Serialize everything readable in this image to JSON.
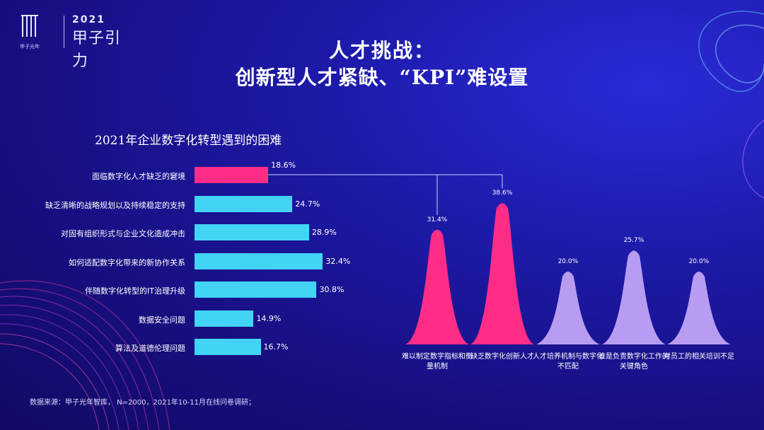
{
  "logo": {
    "brand": "甲子光年",
    "year": "2021",
    "event": "甲子引力"
  },
  "title": {
    "line1": "人才挑战：",
    "line2": "创新型人才紧缺、“KPI”难设置"
  },
  "source": "数据来源：甲子光年智库， N=2000，2021年10-11月在线问卷调研；",
  "colors": {
    "highlight": "#ff2d87",
    "bar": "#43d3f5",
    "muted": "#b79cf2"
  },
  "chart_data": [
    {
      "type": "bar",
      "orientation": "horizontal",
      "title": "2021年企业数字化转型遇到的困难",
      "categories": [
        "面临数字化人才缺乏的窘境",
        "缺乏清晰的战略规划以及持续稳定的支持",
        "对固有组织形式与企业文化造成冲击",
        "如何适配数字化带来的新协作关系",
        "伴随数字化转型的IT治理升级",
        "数据安全问题",
        "算法及道德伦理问题"
      ],
      "values": [
        18.6,
        24.7,
        28.9,
        32.4,
        30.8,
        14.9,
        16.7
      ],
      "value_labels": [
        "18.6%",
        "24.7%",
        "28.9%",
        "32.4%",
        "30.8%",
        "14.9%",
        "16.7%"
      ],
      "highlight_index": 0,
      "xlim": [
        0,
        40
      ]
    },
    {
      "type": "area",
      "style": "peaks",
      "categories": [
        "难以制定数字指标和衡量机制",
        "缺乏数字化创新人才",
        "人才培养机制与数字化不匹配",
        "谁是负责数字化工作的关键角色",
        "对员工的相关培训不足"
      ],
      "values": [
        31.4,
        38.6,
        20.0,
        25.7,
        20.0
      ],
      "value_labels": [
        "31.4%",
        "38.6%",
        "20.0%",
        "25.7%",
        "20.0%"
      ],
      "highlight_indices": [
        0,
        1
      ],
      "ylim": [
        0,
        40
      ]
    }
  ]
}
